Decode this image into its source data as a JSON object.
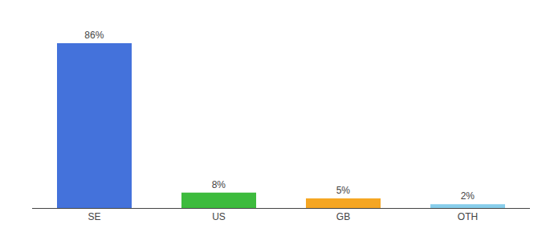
{
  "chart_data": {
    "type": "bar",
    "categories": [
      "SE",
      "US",
      "GB",
      "OTH"
    ],
    "values": [
      86,
      8,
      5,
      2
    ],
    "value_labels": [
      "86%",
      "8%",
      "5%",
      "2%"
    ],
    "data_labels": true,
    "colors": [
      "#4472db",
      "#3dbb3d",
      "#f5a623",
      "#87ceeb"
    ],
    "ylim": [
      0,
      96
    ],
    "grid": false,
    "tick_labels": "x"
  }
}
